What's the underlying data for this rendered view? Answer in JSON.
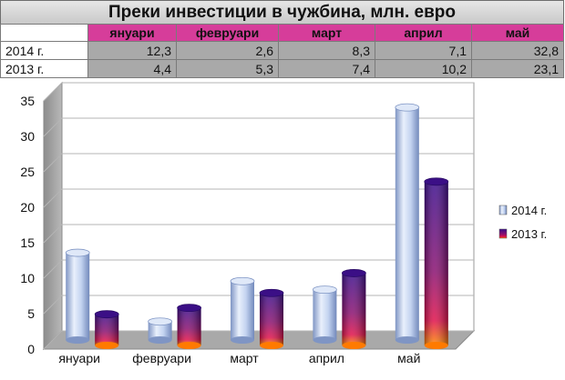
{
  "table": {
    "title": "Преки инвестиции в чужбина, млн. евро",
    "headers": [
      "януари",
      "февруари",
      "март",
      "април",
      "май"
    ],
    "rows": [
      {
        "label": "2014 г.",
        "values": [
          "12,3",
          "2,6",
          "8,3",
          "7,1",
          "32,8"
        ]
      },
      {
        "label": "2013 г.",
        "values": [
          "4,4",
          "5,3",
          "7,4",
          "10,2",
          "23,1"
        ]
      }
    ]
  },
  "chart_data": {
    "type": "bar",
    "categories": [
      "януари",
      "февруари",
      "март",
      "април",
      "май"
    ],
    "series": [
      {
        "name": "2014 г.",
        "values": [
          12.3,
          2.6,
          8.3,
          7.1,
          32.8
        ],
        "color": "#b9cdef"
      },
      {
        "name": "2013 г.",
        "values": [
          4.4,
          5.3,
          7.4,
          10.2,
          23.1
        ],
        "color": "#5a1290"
      }
    ],
    "ylim": [
      0,
      35
    ],
    "yticks": [
      0,
      5,
      10,
      15,
      20,
      25,
      30,
      35
    ],
    "grid": true,
    "legend": "right"
  }
}
